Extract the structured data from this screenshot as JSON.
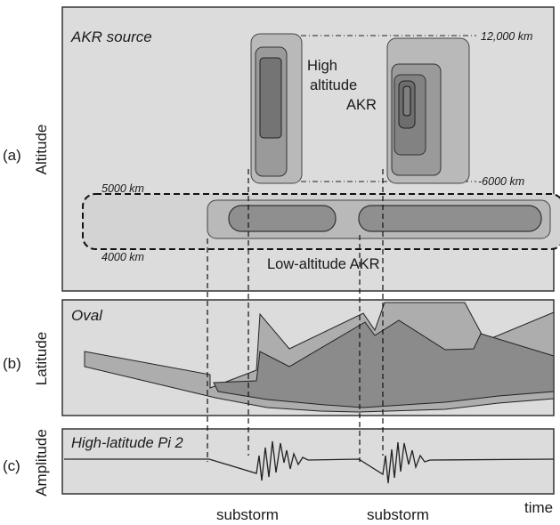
{
  "panel_a": {
    "tag": "(a)",
    "ylabel": "Altitude",
    "title": "AKR source",
    "alt_12000": "12,000 km",
    "alt_6000": "-6000 km",
    "alt_5000": "5000 km",
    "alt_4000": "4000 km",
    "high_line1": "High",
    "high_line2": "altitude",
    "high_line3": "AKR",
    "low_label": "Low-altitude AKR"
  },
  "panel_b": {
    "tag": "(b)",
    "ylabel": "Latitude",
    "title": "Oval"
  },
  "panel_c": {
    "tag": "(c)",
    "ylabel": "Amplitude",
    "title": "High-latitude Pi 2"
  },
  "bottom": {
    "substorm1": "substorm",
    "substorm2": "substorm",
    "time": "time"
  },
  "colors": {
    "panel_bg": "#dcdcdc",
    "shade_light": "#b9b9b9",
    "shade_mid": "#9a9a9a",
    "shade_dark": "#7d7d7d",
    "shade_darkest": "#6a6a6a",
    "stroke": "#333333"
  }
}
